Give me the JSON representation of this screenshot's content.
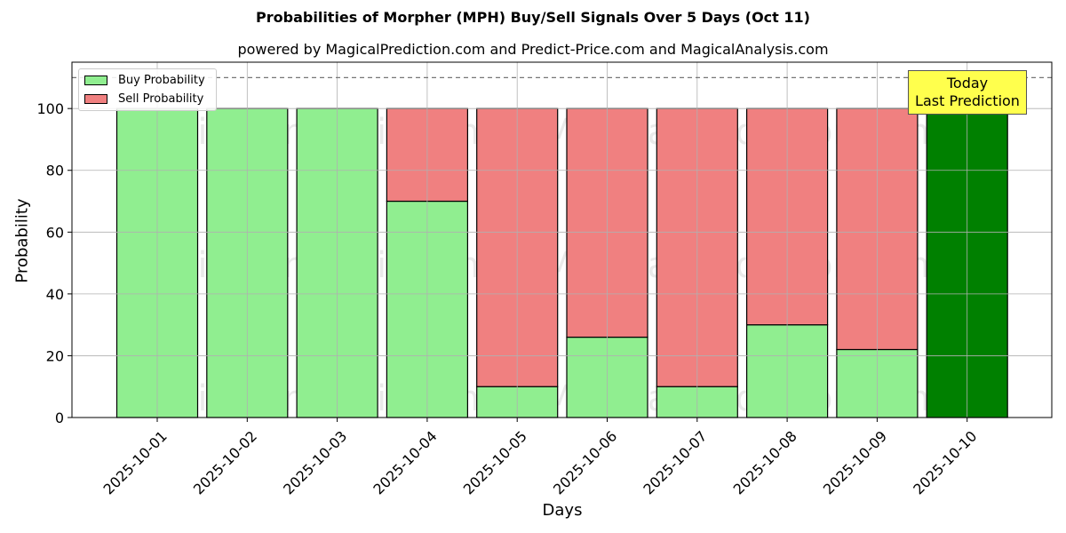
{
  "chart_data": {
    "type": "bar",
    "stacked": true,
    "title": "Probabilities of Morpher (MPH) Buy/Sell Signals Over 5 Days (Oct 11)",
    "subtitle": "powered by MagicalPrediction.com and Predict-Price.com and MagicalAnalysis.com",
    "xlabel": "Days",
    "ylabel": "Probability",
    "ylim": [
      0,
      115
    ],
    "yticks": [
      0,
      20,
      40,
      60,
      80,
      100
    ],
    "reference_line": 110,
    "grid": true,
    "legend_position": "top-left",
    "categories": [
      "2025-10-01",
      "2025-10-02",
      "2025-10-03",
      "2025-10-04",
      "2025-10-05",
      "2025-10-06",
      "2025-10-07",
      "2025-10-08",
      "2025-10-09",
      "2025-10-10"
    ],
    "series": [
      {
        "name": "Buy Probability",
        "color": "#90ee90",
        "values": [
          100,
          100,
          100,
          70,
          10,
          26,
          10,
          30,
          22,
          100
        ]
      },
      {
        "name": "Sell Probability",
        "color": "#f08080",
        "values": [
          0,
          0,
          0,
          30,
          90,
          74,
          90,
          70,
          78,
          0
        ]
      }
    ],
    "highlight": {
      "category": "2025-10-10",
      "color": "#008000"
    },
    "annotation": {
      "line1": "Today",
      "line2": "Last Prediction",
      "color": "#ffff4d"
    },
    "watermarks": [
      "MagicalAnalysis.com",
      "MagicalPrediction.com"
    ]
  }
}
